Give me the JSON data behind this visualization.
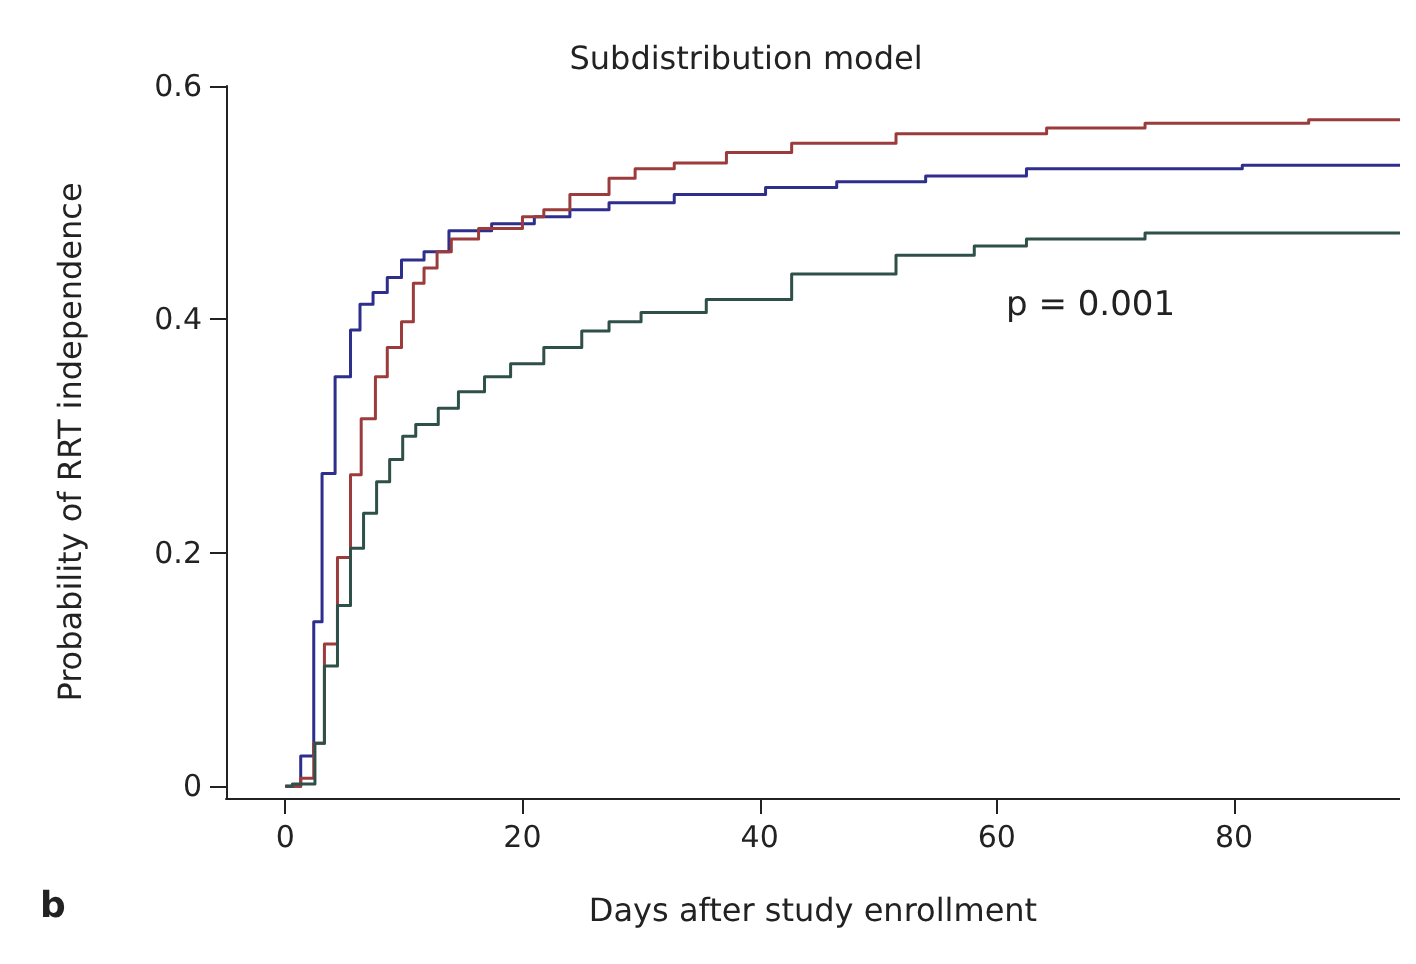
{
  "chart_data": {
    "type": "step",
    "title": "Subdistribution model",
    "xlabel": "Days after study enrollment",
    "ylabel": "Probability of RRT independence",
    "xlim": [
      -5,
      94
    ],
    "xticks": [
      0,
      20,
      40,
      60,
      80
    ],
    "ylim": [
      -0.01,
      0.6
    ],
    "yticks": [
      0,
      0.2,
      0.4,
      0.6
    ],
    "grid": false,
    "marker": "none",
    "line_style": "solid",
    "annotations": [
      "p = 0.001",
      "b"
    ],
    "series": [
      {
        "color": "#2e2e8c",
        "x": [
          0,
          1.3,
          2.4,
          3.1,
          4.2,
          5.5,
          6.3,
          7.4,
          8.6,
          9.8,
          11.7,
          13.8,
          17.4,
          21,
          24,
          27.3,
          32.8,
          40.5,
          46.5,
          54,
          62.5,
          80.7,
          94
        ],
        "values": [
          0,
          0.026,
          0.141,
          0.268,
          0.351,
          0.391,
          0.413,
          0.423,
          0.436,
          0.451,
          0.458,
          0.476,
          0.482,
          0.488,
          0.494,
          0.5,
          0.507,
          0.513,
          0.518,
          0.523,
          0.529,
          0.532,
          0.532
        ]
      },
      {
        "color": "#9c3b3b",
        "x": [
          0,
          1.3,
          2.4,
          3.3,
          4.4,
          5.5,
          6.4,
          7.6,
          8.6,
          9.8,
          10.8,
          11.7,
          12.8,
          14,
          16.3,
          20,
          21.8,
          24,
          27.3,
          29.5,
          32.8,
          37.2,
          42.7,
          51.5,
          64.2,
          72.5,
          86.3,
          94
        ],
        "values": [
          0,
          0.007,
          0.037,
          0.122,
          0.196,
          0.267,
          0.315,
          0.351,
          0.376,
          0.398,
          0.431,
          0.444,
          0.458,
          0.469,
          0.478,
          0.488,
          0.494,
          0.507,
          0.521,
          0.529,
          0.534,
          0.543,
          0.551,
          0.559,
          0.564,
          0.568,
          0.571,
          0.571
        ]
      },
      {
        "color": "#2f5048",
        "x": [
          0,
          0.6,
          2.5,
          3.3,
          4.4,
          5.5,
          6.6,
          7.7,
          8.8,
          9.9,
          11,
          12.9,
          14.6,
          16.8,
          19,
          21.8,
          25,
          27.3,
          30,
          35.5,
          42.7,
          51.5,
          58.1,
          62.5,
          72.5,
          94
        ],
        "values": [
          0,
          0.002,
          0.037,
          0.103,
          0.155,
          0.204,
          0.234,
          0.261,
          0.28,
          0.3,
          0.31,
          0.324,
          0.338,
          0.351,
          0.362,
          0.376,
          0.39,
          0.398,
          0.406,
          0.417,
          0.439,
          0.455,
          0.463,
          0.469,
          0.474,
          0.474
        ]
      }
    ]
  }
}
